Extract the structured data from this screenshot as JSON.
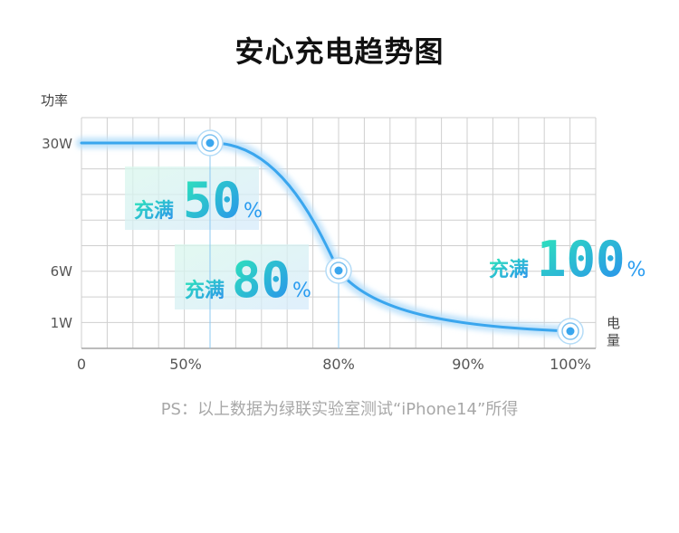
{
  "title": "安心充电趋势图",
  "note": "PS：以上数据为绿联实验室测试“iPhone14”所得",
  "colors": {
    "line": "#3aa6ee",
    "grid": "#cfcfcf",
    "accent_green": "#2ee8b8",
    "accent_blue": "#2a9cf0"
  },
  "chart_data": {
    "type": "line",
    "title": "安心充电趋势图",
    "xlabel": "电量",
    "ylabel": "功率",
    "x_ticks": [
      "0",
      "50%",
      "80%",
      "90%",
      "100%"
    ],
    "y_ticks": [
      "30W",
      "6W",
      "1W"
    ],
    "series": [
      {
        "values": [
          {
            "x": "0",
            "y": "30W"
          },
          {
            "x": "50%",
            "y": "30W"
          },
          {
            "x": "80%",
            "y": "6W"
          },
          {
            "x": "100%",
            "y": "1W"
          }
        ]
      }
    ],
    "markers": [
      "50%",
      "80%",
      "100%"
    ],
    "annotations": [
      {
        "prefix": "充满",
        "value": "50",
        "unit": "%"
      },
      {
        "prefix": "充满",
        "value": "80",
        "unit": "%"
      },
      {
        "prefix": "充满",
        "value": "100",
        "unit": "%"
      }
    ],
    "grid": true
  }
}
